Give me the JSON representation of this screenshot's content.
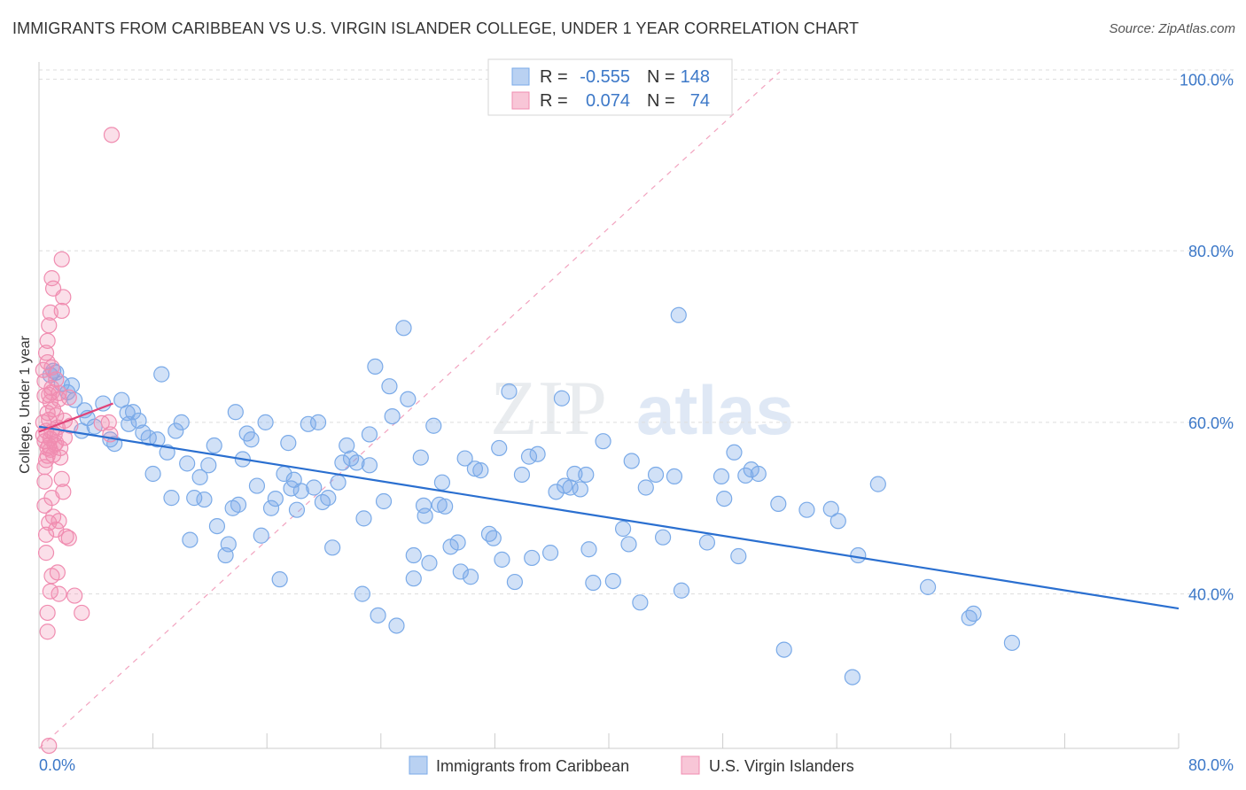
{
  "header": {
    "title": "IMMIGRANTS FROM CARIBBEAN VS U.S. VIRGIN ISLANDER COLLEGE, UNDER 1 YEAR CORRELATION CHART",
    "source": "Source: ZipAtlas.com"
  },
  "stats_box": {
    "rows": [
      {
        "r_label": "R =",
        "r_value": "-0.555",
        "n_label": "N =",
        "n_value": "148"
      },
      {
        "r_label": "R =",
        "r_value": "0.074",
        "n_label": "N =",
        "n_value": "74"
      }
    ]
  },
  "watermark": {
    "zip": "ZIP",
    "atlas": "atlas"
  },
  "chart_data": {
    "type": "scatter",
    "title": "IMMIGRANTS FROM CARIBBEAN VS U.S. VIRGIN ISLANDER COLLEGE, UNDER 1 YEAR CORRELATION CHART",
    "xlabel": "",
    "ylabel": "College, Under 1 year",
    "xlim": [
      0,
      80
    ],
    "ylim": [
      22,
      102
    ],
    "x_tick_labels": [
      "0.0%",
      "80.0%"
    ],
    "y_ticks": [
      40,
      60,
      80,
      100
    ],
    "y_tick_labels": [
      "40.0%",
      "60.0%",
      "80.0%",
      "100.0%"
    ],
    "grid": "horizontal dashed",
    "legend_position": "bottom-center",
    "colors": {
      "blue": "#7aaae8",
      "blue_line": "#2a6fd0",
      "pink": "#f08cb0",
      "pink_line": "#e0447a"
    },
    "series": [
      {
        "name": "Immigrants from Caribbean",
        "color": "#7aaae8",
        "trend": {
          "x": [
            0,
            80
          ],
          "y": [
            59.5,
            38.3
          ]
        },
        "points": [
          [
            0.8,
            65.5
          ],
          [
            1.2,
            65.8
          ],
          [
            1.6,
            64.5
          ],
          [
            2.0,
            63.5
          ],
          [
            2.5,
            62.6
          ],
          [
            3.0,
            59.0
          ],
          [
            3.4,
            60.5
          ],
          [
            3.9,
            59.5
          ],
          [
            4.5,
            62.2
          ],
          [
            5.0,
            58.0
          ],
          [
            5.3,
            57.5
          ],
          [
            5.8,
            62.6
          ],
          [
            6.3,
            59.8
          ],
          [
            6.6,
            61.2
          ],
          [
            7.0,
            60.2
          ],
          [
            7.7,
            58.2
          ],
          [
            8.0,
            54.0
          ],
          [
            8.3,
            58.0
          ],
          [
            8.6,
            65.6
          ],
          [
            9.0,
            56.5
          ],
          [
            9.3,
            51.2
          ],
          [
            9.6,
            59.0
          ],
          [
            10.0,
            60.0
          ],
          [
            10.4,
            55.2
          ],
          [
            10.6,
            46.3
          ],
          [
            10.9,
            51.2
          ],
          [
            11.3,
            53.6
          ],
          [
            11.6,
            51.0
          ],
          [
            11.9,
            55.0
          ],
          [
            12.3,
            57.3
          ],
          [
            12.5,
            47.9
          ],
          [
            13.1,
            44.5
          ],
          [
            13.3,
            45.8
          ],
          [
            13.6,
            50.0
          ],
          [
            14.0,
            50.4
          ],
          [
            14.3,
            55.7
          ],
          [
            14.6,
            58.7
          ],
          [
            14.9,
            58.0
          ],
          [
            15.3,
            52.6
          ],
          [
            15.6,
            46.8
          ],
          [
            15.9,
            60.0
          ],
          [
            16.3,
            50.0
          ],
          [
            16.6,
            51.1
          ],
          [
            16.9,
            41.7
          ],
          [
            17.2,
            54.0
          ],
          [
            17.5,
            57.6
          ],
          [
            17.9,
            53.3
          ],
          [
            18.1,
            49.8
          ],
          [
            18.4,
            52.0
          ],
          [
            18.9,
            59.8
          ],
          [
            19.3,
            52.4
          ],
          [
            19.6,
            60.0
          ],
          [
            19.9,
            50.7
          ],
          [
            20.3,
            51.2
          ],
          [
            20.6,
            45.4
          ],
          [
            21.0,
            53.0
          ],
          [
            21.3,
            55.3
          ],
          [
            21.6,
            57.3
          ],
          [
            21.9,
            55.8
          ],
          [
            22.3,
            55.3
          ],
          [
            22.7,
            40.0
          ],
          [
            22.8,
            48.8
          ],
          [
            23.2,
            55.0
          ],
          [
            23.6,
            66.5
          ],
          [
            23.8,
            37.5
          ],
          [
            24.2,
            50.8
          ],
          [
            24.6,
            64.2
          ],
          [
            24.8,
            60.7
          ],
          [
            25.1,
            36.3
          ],
          [
            25.6,
            71.0
          ],
          [
            25.9,
            62.7
          ],
          [
            26.3,
            44.5
          ],
          [
            26.3,
            41.8
          ],
          [
            26.8,
            55.9
          ],
          [
            27.1,
            49.1
          ],
          [
            27.4,
            43.6
          ],
          [
            27.7,
            59.6
          ],
          [
            28.1,
            50.4
          ],
          [
            28.3,
            53.0
          ],
          [
            28.5,
            50.2
          ],
          [
            28.9,
            45.5
          ],
          [
            29.4,
            46.0
          ],
          [
            29.6,
            42.6
          ],
          [
            29.9,
            55.8
          ],
          [
            30.3,
            42.0
          ],
          [
            30.6,
            54.6
          ],
          [
            31.0,
            54.4
          ],
          [
            31.6,
            47.0
          ],
          [
            31.9,
            46.5
          ],
          [
            32.3,
            57.0
          ],
          [
            32.5,
            44.0
          ],
          [
            33.0,
            63.6
          ],
          [
            33.4,
            41.4
          ],
          [
            33.9,
            53.9
          ],
          [
            34.4,
            56.0
          ],
          [
            34.6,
            44.2
          ],
          [
            35.0,
            56.3
          ],
          [
            35.9,
            44.8
          ],
          [
            36.3,
            51.9
          ],
          [
            36.9,
            52.6
          ],
          [
            37.3,
            52.4
          ],
          [
            37.6,
            54.0
          ],
          [
            38.0,
            52.2
          ],
          [
            38.4,
            53.9
          ],
          [
            38.6,
            45.2
          ],
          [
            38.9,
            41.3
          ],
          [
            39.6,
            57.8
          ],
          [
            40.3,
            41.5
          ],
          [
            41.0,
            47.6
          ],
          [
            41.4,
            45.8
          ],
          [
            41.6,
            55.5
          ],
          [
            42.2,
            39.0
          ],
          [
            42.6,
            52.4
          ],
          [
            43.3,
            53.9
          ],
          [
            43.8,
            46.6
          ],
          [
            44.6,
            53.7
          ],
          [
            44.9,
            72.5
          ],
          [
            45.1,
            40.4
          ],
          [
            46.9,
            46.0
          ],
          [
            47.9,
            53.7
          ],
          [
            48.1,
            51.1
          ],
          [
            48.8,
            56.5
          ],
          [
            49.1,
            44.4
          ],
          [
            49.6,
            53.8
          ],
          [
            50.0,
            54.5
          ],
          [
            50.5,
            54.0
          ],
          [
            51.9,
            50.5
          ],
          [
            52.3,
            33.5
          ],
          [
            53.9,
            49.8
          ],
          [
            55.6,
            49.9
          ],
          [
            56.1,
            48.5
          ],
          [
            57.1,
            30.3
          ],
          [
            57.5,
            44.5
          ],
          [
            58.9,
            52.8
          ],
          [
            62.4,
            40.8
          ],
          [
            65.3,
            37.2
          ],
          [
            65.6,
            37.7
          ],
          [
            68.3,
            34.3
          ],
          [
            3.2,
            61.4
          ],
          [
            1.0,
            66.0
          ],
          [
            2.3,
            64.3
          ],
          [
            6.2,
            61.1
          ],
          [
            27.0,
            50.3
          ],
          [
            23.2,
            58.6
          ],
          [
            36.7,
            62.8
          ],
          [
            7.3,
            58.8
          ],
          [
            17.7,
            52.3
          ],
          [
            13.8,
            61.2
          ]
        ]
      },
      {
        "name": "U.S. Virgin Islanders",
        "color": "#f08cb0",
        "trend": {
          "x": [
            0,
            5.2
          ],
          "y": [
            58.9,
            62.2
          ]
        },
        "points": [
          [
            0.4,
            64.8
          ],
          [
            0.5,
            59.0
          ],
          [
            0.6,
            61.1
          ],
          [
            0.7,
            57.3
          ],
          [
            0.8,
            58.1
          ],
          [
            0.9,
            63.5
          ],
          [
            0.3,
            66.1
          ],
          [
            0.4,
            63.1
          ],
          [
            0.5,
            55.6
          ],
          [
            0.6,
            57.0
          ],
          [
            0.7,
            60.3
          ],
          [
            0.8,
            62.4
          ],
          [
            0.9,
            64.0
          ],
          [
            1.0,
            61.5
          ],
          [
            1.1,
            58.6
          ],
          [
            1.2,
            60.8
          ],
          [
            1.3,
            59.4
          ],
          [
            1.4,
            62.7
          ],
          [
            0.3,
            60.0
          ],
          [
            0.4,
            57.8
          ],
          [
            0.5,
            68.1
          ],
          [
            0.6,
            69.5
          ],
          [
            0.7,
            71.3
          ],
          [
            0.8,
            72.8
          ],
          [
            0.9,
            76.8
          ],
          [
            1.0,
            75.6
          ],
          [
            1.2,
            65.0
          ],
          [
            1.4,
            63.4
          ],
          [
            1.5,
            55.9
          ],
          [
            1.6,
            53.4
          ],
          [
            1.7,
            51.9
          ],
          [
            1.8,
            58.2
          ],
          [
            1.2,
            47.5
          ],
          [
            1.4,
            48.5
          ],
          [
            1.0,
            49.0
          ],
          [
            1.3,
            42.5
          ],
          [
            1.4,
            40.0
          ],
          [
            0.5,
            44.8
          ],
          [
            0.9,
            42.1
          ],
          [
            0.6,
            37.8
          ],
          [
            0.8,
            40.3
          ],
          [
            0.6,
            35.6
          ],
          [
            0.5,
            46.9
          ],
          [
            0.7,
            48.3
          ],
          [
            0.4,
            53.1
          ],
          [
            0.6,
            56.1
          ],
          [
            0.9,
            58.9
          ],
          [
            1.1,
            57.4
          ],
          [
            0.8,
            56.8
          ],
          [
            0.4,
            54.8
          ],
          [
            1.6,
            73.0
          ],
          [
            1.7,
            74.6
          ],
          [
            1.6,
            79.0
          ],
          [
            1.8,
            60.2
          ],
          [
            2.1,
            62.9
          ],
          [
            1.9,
            46.7
          ],
          [
            2.1,
            46.5
          ],
          [
            2.5,
            39.8
          ],
          [
            3.0,
            37.8
          ],
          [
            4.4,
            59.9
          ],
          [
            4.9,
            60.0
          ],
          [
            5.0,
            58.6
          ],
          [
            5.1,
            93.5
          ],
          [
            0.7,
            22.3
          ],
          [
            0.3,
            58.5
          ],
          [
            0.9,
            66.4
          ],
          [
            0.6,
            67.0
          ],
          [
            1.5,
            57.0
          ],
          [
            0.7,
            63.2
          ],
          [
            1.2,
            57.6
          ],
          [
            0.4,
            50.3
          ],
          [
            1.0,
            56.2
          ],
          [
            0.9,
            51.2
          ],
          [
            2.2,
            59.6
          ]
        ]
      }
    ]
  }
}
